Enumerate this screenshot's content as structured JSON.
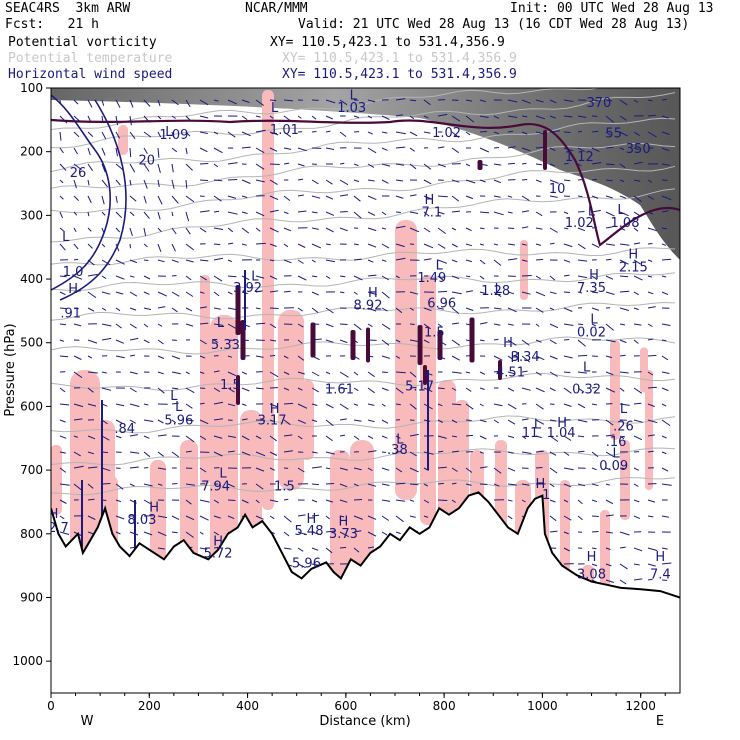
{
  "header": {
    "model": "SEAC4RS  3km ARW",
    "institution": "NCAR/MMM",
    "init": "Init: 00 UTC Wed 28 Aug 13",
    "fcst": "Fcst:   21 h",
    "valid": "Valid: 21 UTC Wed 28 Aug 13 (16 CDT Wed 28 Aug 13)"
  },
  "fields": [
    {
      "name": "Potential vorticity",
      "xy": "XY= 110.5,423.1 to 531.4,356.9",
      "color": "#000000"
    },
    {
      "name": "Potential temperature",
      "xy": "XY= 110.5,423.1 to 531.4,356.9",
      "color": "#c8c8c8"
    },
    {
      "name": "Horizontal wind speed",
      "xy": "XY= 110.5,423.1 to 531.4,356.9",
      "color": "#1a1a80"
    }
  ],
  "colors": {
    "pv_fill": "#f8baba",
    "pv_contour": "#4a0a38",
    "theta": "#b4b4b4",
    "wind": "#1a1a80",
    "terrain": "#000000",
    "annotation": "#1a1a80"
  },
  "chart_data": {
    "type": "cross-section",
    "xlabel": "Distance (km)",
    "ylabel": "Pressure (hPa)",
    "xlim": [
      0,
      1280
    ],
    "ylim": [
      1050,
      100
    ],
    "x_ticks": [
      0,
      200,
      400,
      600,
      800,
      1000,
      1200
    ],
    "y_ticks": [
      100,
      200,
      300,
      400,
      500,
      600,
      700,
      800,
      900,
      1000
    ],
    "x_end_labels": {
      "left": "W",
      "right": "E"
    },
    "terrain": [
      [
        0,
        760
      ],
      [
        15,
        800
      ],
      [
        30,
        820
      ],
      [
        55,
        800
      ],
      [
        65,
        830
      ],
      [
        80,
        810
      ],
      [
        95,
        790
      ],
      [
        110,
        760
      ],
      [
        125,
        800
      ],
      [
        140,
        820
      ],
      [
        160,
        835
      ],
      [
        180,
        815
      ],
      [
        210,
        830
      ],
      [
        230,
        840
      ],
      [
        250,
        820
      ],
      [
        270,
        810
      ],
      [
        290,
        830
      ],
      [
        320,
        840
      ],
      [
        340,
        825
      ],
      [
        360,
        800
      ],
      [
        380,
        790
      ],
      [
        395,
        770
      ],
      [
        410,
        790
      ],
      [
        430,
        780
      ],
      [
        450,
        800
      ],
      [
        470,
        830
      ],
      [
        490,
        860
      ],
      [
        510,
        870
      ],
      [
        530,
        855
      ],
      [
        560,
        845
      ],
      [
        575,
        860
      ],
      [
        590,
        870
      ],
      [
        610,
        840
      ],
      [
        630,
        850
      ],
      [
        650,
        830
      ],
      [
        670,
        820
      ],
      [
        690,
        800
      ],
      [
        710,
        810
      ],
      [
        730,
        790
      ],
      [
        750,
        800
      ],
      [
        770,
        790
      ],
      [
        790,
        760
      ],
      [
        810,
        770
      ],
      [
        830,
        760
      ],
      [
        850,
        740
      ],
      [
        870,
        735
      ],
      [
        890,
        750
      ],
      [
        910,
        770
      ],
      [
        930,
        790
      ],
      [
        950,
        800
      ],
      [
        970,
        760
      ],
      [
        985,
        745
      ],
      [
        1000,
        740
      ],
      [
        1005,
        800
      ],
      [
        1020,
        830
      ],
      [
        1040,
        850
      ],
      [
        1070,
        865
      ],
      [
        1100,
        875
      ],
      [
        1130,
        880
      ],
      [
        1160,
        885
      ],
      [
        1200,
        887
      ],
      [
        1240,
        890
      ],
      [
        1280,
        900
      ]
    ],
    "pv_labels": [
      {
        "t": "L",
        "x": 240,
        "p": 175
      },
      {
        "t": "1.09",
        "x": 250,
        "p": 180
      },
      {
        "t": "L",
        "x": 455,
        "p": 138
      },
      {
        "t": "1.01",
        "x": 475,
        "p": 172
      },
      {
        "t": "L",
        "x": 615,
        "p": 118
      },
      {
        "t": "1.03",
        "x": 612,
        "p": 138
      },
      {
        "t": "1.02",
        "x": 805,
        "p": 177
      },
      {
        "t": "20",
        "x": 195,
        "p": 220
      },
      {
        "t": "26",
        "x": 55,
        "p": 240
      },
      {
        "t": "370",
        "x": 1115,
        "p": 130
      },
      {
        "t": "55",
        "x": 1145,
        "p": 178
      },
      {
        "t": "350",
        "x": 1195,
        "p": 202
      },
      {
        "t": "1.12",
        "x": 1075,
        "p": 215
      },
      {
        "t": "10",
        "x": 1030,
        "p": 265
      },
      {
        "t": "H",
        "x": 770,
        "p": 282
      },
      {
        "t": "7.1",
        "x": 775,
        "p": 302
      },
      {
        "t": "L",
        "x": 1100,
        "p": 300
      },
      {
        "t": "1.02",
        "x": 1075,
        "p": 318
      },
      {
        "t": "L",
        "x": 1160,
        "p": 298
      },
      {
        "t": "1.08",
        "x": 1168,
        "p": 318
      },
      {
        "t": "L",
        "x": 30,
        "p": 340
      },
      {
        "t": "1.0",
        "x": 45,
        "p": 395
      },
      {
        "t": "H",
        "x": 1185,
        "p": 368
      },
      {
        "t": "2.15",
        "x": 1185,
        "p": 388
      },
      {
        "t": "L",
        "x": 415,
        "p": 402
      },
      {
        "t": "3.92",
        "x": 400,
        "p": 420
      },
      {
        "t": "L",
        "x": 790,
        "p": 385
      },
      {
        "t": "1.49",
        "x": 775,
        "p": 405
      },
      {
        "t": "H",
        "x": 1105,
        "p": 400
      },
      {
        "t": "7.35",
        "x": 1100,
        "p": 420
      },
      {
        "t": "H",
        "x": 45,
        "p": 422
      },
      {
        "t": "L",
        "x": 910,
        "p": 422
      },
      {
        "t": "1.28",
        "x": 905,
        "p": 425
      },
      {
        "t": "H",
        "x": 655,
        "p": 428
      },
      {
        "t": "8.92",
        "x": 645,
        "p": 448
      },
      {
        "t": "6.96",
        "x": 795,
        "p": 445
      },
      {
        "t": ".91",
        "x": 40,
        "p": 460
      },
      {
        "t": "L",
        "x": 345,
        "p": 475
      },
      {
        "t": "5.33",
        "x": 355,
        "p": 510
      },
      {
        "t": "1.5",
        "x": 780,
        "p": 490
      },
      {
        "t": "L",
        "x": 1105,
        "p": 470
      },
      {
        "t": "0.02",
        "x": 1100,
        "p": 490
      },
      {
        "t": "H",
        "x": 930,
        "p": 507
      },
      {
        "t": "H",
        "x": 945,
        "p": 530
      },
      {
        "t": "4.51",
        "x": 935,
        "p": 553
      },
      {
        "t": "3.34",
        "x": 965,
        "p": 529
      },
      {
        "t": "1.5",
        "x": 365,
        "p": 573
      },
      {
        "t": "1.61",
        "x": 587,
        "p": 580
      },
      {
        "t": "5.17",
        "x": 750,
        "p": 575
      },
      {
        "t": "L",
        "x": 1090,
        "p": 545
      },
      {
        "t": "0.32",
        "x": 1090,
        "p": 580
      },
      {
        "t": "L",
        "x": 250,
        "p": 590
      },
      {
        "t": "L",
        "x": 260,
        "p": 607
      },
      {
        "t": "5.96",
        "x": 260,
        "p": 628
      },
      {
        "t": "H",
        "x": 455,
        "p": 610
      },
      {
        "t": "3.17",
        "x": 450,
        "p": 628
      },
      {
        "t": "H",
        "x": 1040,
        "p": 632
      },
      {
        "t": "1.04",
        "x": 1038,
        "p": 648
      },
      {
        "t": "L",
        "x": 990,
        "p": 635
      },
      {
        "t": "11",
        "x": 975,
        "p": 648
      },
      {
        "t": "L",
        "x": 1165,
        "p": 610
      },
      {
        "t": ".26",
        "x": 1165,
        "p": 638
      },
      {
        "t": ".84",
        "x": 150,
        "p": 642
      },
      {
        "t": "L",
        "x": 710,
        "p": 658
      },
      {
        "t": ".38",
        "x": 705,
        "p": 675
      },
      {
        "t": ".16",
        "x": 1150,
        "p": 662
      },
      {
        "t": "L",
        "x": 1150,
        "p": 680
      },
      {
        "t": "0.09",
        "x": 1145,
        "p": 700
      },
      {
        "t": "L",
        "x": 350,
        "p": 712
      },
      {
        "t": "7.94",
        "x": 335,
        "p": 732
      },
      {
        "t": "1.5",
        "x": 475,
        "p": 732
      },
      {
        "t": "H",
        "x": 996,
        "p": 728
      },
      {
        "t": "1",
        "x": 1008,
        "p": 745
      },
      {
        "t": "H",
        "x": 210,
        "p": 765
      },
      {
        "t": "8.03",
        "x": 185,
        "p": 785
      },
      {
        "t": "H",
        "x": 5,
        "p": 775
      },
      {
        "t": "2.7",
        "x": 15,
        "p": 797
      },
      {
        "t": "H",
        "x": 530,
        "p": 783
      },
      {
        "t": "5.48",
        "x": 525,
        "p": 802
      },
      {
        "t": "H",
        "x": 595,
        "p": 787
      },
      {
        "t": "3.73",
        "x": 595,
        "p": 807
      },
      {
        "t": "H",
        "x": 340,
        "p": 818
      },
      {
        "t": "5.72",
        "x": 340,
        "p": 837
      },
      {
        "t": "H",
        "x": 1100,
        "p": 843
      },
      {
        "t": "3.08",
        "x": 1100,
        "p": 870
      },
      {
        "t": "H",
        "x": 1240,
        "p": 843
      },
      {
        "t": "7.4",
        "x": 1240,
        "p": 870
      },
      {
        "t": "5.96",
        "x": 520,
        "p": 853
      }
    ]
  }
}
